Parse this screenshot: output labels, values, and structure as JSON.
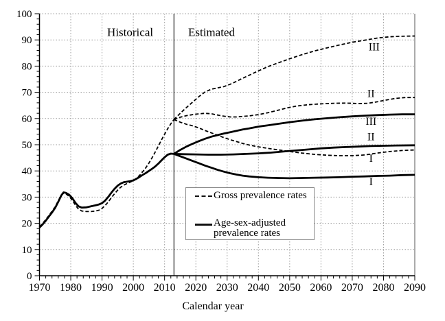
{
  "chart_data": {
    "type": "line",
    "title": "",
    "xlabel": "Calendar year",
    "ylabel": "",
    "xlim": [
      1970,
      2090
    ],
    "ylim": [
      0,
      100
    ],
    "x_major_tick_step": 10,
    "x_minor_tick_step": 2,
    "y_major_tick_step": 10,
    "y_minor_tick_step": 2,
    "grid": "dotted",
    "divider_year": 2013,
    "region_labels": [
      {
        "text": "Historical",
        "x": 1999,
        "y": 93
      },
      {
        "text": "Estimated",
        "x": 2025,
        "y": 93
      }
    ],
    "legend": {
      "items": [
        {
          "label": "Gross prevalence rates",
          "style": "dashed"
        },
        {
          "label": "Age-sex-adjusted prevalence rates",
          "style": "solid"
        }
      ]
    },
    "curve_labels": [
      {
        "text": "III",
        "series": "gross-estimated-III",
        "x": 2077,
        "y": 87.3
      },
      {
        "text": "II",
        "series": "gross-estimated-II",
        "x": 2076,
        "y": 69.5
      },
      {
        "text": "III",
        "series": "adjusted-estimated-III",
        "x": 2076,
        "y": 58.9
      },
      {
        "text": "II",
        "series": "adjusted-estimated-II",
        "x": 2076,
        "y": 53.0
      },
      {
        "text": "I",
        "series": "gross-estimated-I",
        "x": 2076,
        "y": 44.7
      },
      {
        "text": "I",
        "series": "adjusted-estimated-I",
        "x": 2076,
        "y": 35.8
      }
    ],
    "series": [
      {
        "name": "gross-historical",
        "style": "dashed",
        "points": [
          [
            1970,
            18.7
          ],
          [
            1971,
            20.0
          ],
          [
            1972,
            21.4
          ],
          [
            1973,
            23.0
          ],
          [
            1974,
            24.6
          ],
          [
            1975,
            26.3
          ],
          [
            1976,
            28.6
          ],
          [
            1977,
            30.8
          ],
          [
            1977.7,
            31.5
          ],
          [
            1978.5,
            31.2
          ],
          [
            1979.5,
            30.3
          ],
          [
            1980.5,
            28.8
          ],
          [
            1981.5,
            26.9
          ],
          [
            1982.5,
            25.4
          ],
          [
            1983.5,
            24.7
          ],
          [
            1985,
            24.5
          ],
          [
            1986.5,
            24.5
          ],
          [
            1988,
            24.7
          ],
          [
            1989,
            25.0
          ],
          [
            1990,
            25.7
          ],
          [
            1991,
            26.8
          ],
          [
            1992,
            28.2
          ],
          [
            1993,
            29.8
          ],
          [
            1994,
            31.3
          ],
          [
            1995,
            32.7
          ],
          [
            1996,
            33.8
          ],
          [
            1997,
            34.6
          ],
          [
            1998,
            35.2
          ],
          [
            1999,
            35.7
          ],
          [
            2000,
            36.3
          ],
          [
            2001,
            37.2
          ],
          [
            2002,
            38.3
          ],
          [
            2003,
            39.7
          ],
          [
            2004,
            41.2
          ],
          [
            2005,
            43.0
          ],
          [
            2006,
            45.0
          ],
          [
            2007,
            47.2
          ],
          [
            2008,
            49.5
          ],
          [
            2009,
            51.8
          ],
          [
            2010,
            54.0
          ],
          [
            2011,
            56.1
          ],
          [
            2012,
            58.0
          ],
          [
            2013,
            59.6
          ]
        ]
      },
      {
        "name": "adjusted-historical",
        "style": "solid",
        "points": [
          [
            1970,
            18.4
          ],
          [
            1971,
            19.6
          ],
          [
            1972,
            21.0
          ],
          [
            1973,
            22.6
          ],
          [
            1974,
            24.1
          ],
          [
            1975,
            25.9
          ],
          [
            1976,
            28.2
          ],
          [
            1977,
            30.7
          ],
          [
            1977.7,
            31.8
          ],
          [
            1978.5,
            31.6
          ],
          [
            1979.5,
            30.9
          ],
          [
            1980.5,
            29.6
          ],
          [
            1981.5,
            27.8
          ],
          [
            1982.5,
            26.5
          ],
          [
            1983.5,
            26.0
          ],
          [
            1985,
            26.1
          ],
          [
            1986.5,
            26.5
          ],
          [
            1988,
            26.9
          ],
          [
            1989,
            27.2
          ],
          [
            1990,
            27.7
          ],
          [
            1991,
            28.7
          ],
          [
            1992,
            30.1
          ],
          [
            1993,
            31.7
          ],
          [
            1994,
            33.2
          ],
          [
            1995,
            34.4
          ],
          [
            1996,
            35.2
          ],
          [
            1997,
            35.7
          ],
          [
            1998,
            35.9
          ],
          [
            1999,
            36.1
          ],
          [
            2000,
            36.4
          ],
          [
            2001,
            37.0
          ],
          [
            2002,
            37.7
          ],
          [
            2003,
            38.5
          ],
          [
            2004,
            39.2
          ],
          [
            2005,
            40.0
          ],
          [
            2006,
            40.8
          ],
          [
            2007,
            41.7
          ],
          [
            2008,
            42.8
          ],
          [
            2009,
            44.0
          ],
          [
            2010,
            45.2
          ],
          [
            2011,
            46.2
          ],
          [
            2012,
            46.6
          ],
          [
            2013,
            46.5
          ]
        ]
      },
      {
        "name": "gross-estimated-III",
        "style": "dashed",
        "points": [
          [
            2013,
            59.6
          ],
          [
            2015,
            62.0
          ],
          [
            2017,
            64.2
          ],
          [
            2019,
            66.3
          ],
          [
            2021,
            68.4
          ],
          [
            2023,
            70.2
          ],
          [
            2025,
            71.2
          ],
          [
            2027,
            71.7
          ],
          [
            2029,
            72.2
          ],
          [
            2031,
            73.1
          ],
          [
            2033,
            74.2
          ],
          [
            2035,
            75.4
          ],
          [
            2037,
            76.5
          ],
          [
            2040,
            78.2
          ],
          [
            2043,
            79.8
          ],
          [
            2046,
            81.1
          ],
          [
            2050,
            82.8
          ],
          [
            2054,
            84.4
          ],
          [
            2058,
            85.8
          ],
          [
            2062,
            87.0
          ],
          [
            2066,
            88.1
          ],
          [
            2070,
            89.1
          ],
          [
            2074,
            89.9
          ],
          [
            2078,
            90.7
          ],
          [
            2082,
            91.2
          ],
          [
            2085,
            91.4
          ],
          [
            2090,
            91.5
          ]
        ]
      },
      {
        "name": "gross-estimated-II",
        "style": "dashed",
        "points": [
          [
            2013,
            59.6
          ],
          [
            2015,
            60.5
          ],
          [
            2017,
            61.1
          ],
          [
            2019,
            61.5
          ],
          [
            2021,
            61.8
          ],
          [
            2023,
            62.0
          ],
          [
            2025,
            61.8
          ],
          [
            2027,
            61.3
          ],
          [
            2029,
            60.9
          ],
          [
            2031,
            60.6
          ],
          [
            2033,
            60.6
          ],
          [
            2035,
            60.8
          ],
          [
            2037,
            61.0
          ],
          [
            2040,
            61.5
          ],
          [
            2043,
            62.2
          ],
          [
            2046,
            63.1
          ],
          [
            2049,
            64.0
          ],
          [
            2052,
            64.7
          ],
          [
            2056,
            65.3
          ],
          [
            2060,
            65.6
          ],
          [
            2064,
            65.8
          ],
          [
            2068,
            65.9
          ],
          [
            2072,
            65.7
          ],
          [
            2075,
            65.8
          ],
          [
            2078,
            66.4
          ],
          [
            2081,
            67.1
          ],
          [
            2084,
            67.7
          ],
          [
            2087,
            68.0
          ],
          [
            2090,
            68.0
          ]
        ]
      },
      {
        "name": "gross-estimated-I",
        "style": "dashed",
        "points": [
          [
            2013,
            59.6
          ],
          [
            2015,
            58.6
          ],
          [
            2017,
            57.8
          ],
          [
            2019,
            57.2
          ],
          [
            2021,
            56.4
          ],
          [
            2023,
            55.4
          ],
          [
            2025,
            54.5
          ],
          [
            2027,
            53.6
          ],
          [
            2029,
            52.7
          ],
          [
            2031,
            51.9
          ],
          [
            2033,
            51.2
          ],
          [
            2035,
            50.5
          ],
          [
            2037,
            49.9
          ],
          [
            2040,
            49.2
          ],
          [
            2043,
            48.6
          ],
          [
            2046,
            48.1
          ],
          [
            2050,
            47.4
          ],
          [
            2054,
            46.8
          ],
          [
            2058,
            46.3
          ],
          [
            2062,
            46.0
          ],
          [
            2066,
            45.8
          ],
          [
            2070,
            45.8
          ],
          [
            2074,
            46.1
          ],
          [
            2078,
            46.8
          ],
          [
            2082,
            47.4
          ],
          [
            2086,
            47.8
          ],
          [
            2090,
            48.0
          ]
        ]
      },
      {
        "name": "adjusted-estimated-III",
        "style": "solid",
        "points": [
          [
            2013,
            46.5
          ],
          [
            2015,
            48.0
          ],
          [
            2017,
            49.3
          ],
          [
            2019,
            50.4
          ],
          [
            2021,
            51.4
          ],
          [
            2023,
            52.3
          ],
          [
            2025,
            53.1
          ],
          [
            2027,
            53.7
          ],
          [
            2029,
            54.3
          ],
          [
            2031,
            54.8
          ],
          [
            2033,
            55.3
          ],
          [
            2035,
            55.8
          ],
          [
            2037,
            56.2
          ],
          [
            2040,
            56.9
          ],
          [
            2043,
            57.4
          ],
          [
            2046,
            57.9
          ],
          [
            2050,
            58.6
          ],
          [
            2054,
            59.2
          ],
          [
            2058,
            59.7
          ],
          [
            2062,
            60.1
          ],
          [
            2066,
            60.5
          ],
          [
            2070,
            60.8
          ],
          [
            2074,
            61.1
          ],
          [
            2078,
            61.3
          ],
          [
            2082,
            61.5
          ],
          [
            2086,
            61.6
          ],
          [
            2090,
            61.6
          ]
        ]
      },
      {
        "name": "adjusted-estimated-II",
        "style": "solid",
        "points": [
          [
            2013,
            46.5
          ],
          [
            2016,
            46.4
          ],
          [
            2020,
            46.3
          ],
          [
            2024,
            46.2
          ],
          [
            2028,
            46.2
          ],
          [
            2032,
            46.3
          ],
          [
            2036,
            46.5
          ],
          [
            2040,
            46.7
          ],
          [
            2044,
            47.0
          ],
          [
            2048,
            47.4
          ],
          [
            2052,
            47.8
          ],
          [
            2056,
            48.2
          ],
          [
            2060,
            48.6
          ],
          [
            2064,
            48.9
          ],
          [
            2068,
            49.1
          ],
          [
            2072,
            49.3
          ],
          [
            2076,
            49.5
          ],
          [
            2080,
            49.6
          ],
          [
            2084,
            49.7
          ],
          [
            2090,
            49.8
          ]
        ]
      },
      {
        "name": "adjusted-estimated-I",
        "style": "solid",
        "points": [
          [
            2013,
            46.5
          ],
          [
            2015,
            45.6
          ],
          [
            2017,
            44.7
          ],
          [
            2019,
            43.8
          ],
          [
            2021,
            42.9
          ],
          [
            2023,
            42.0
          ],
          [
            2025,
            41.2
          ],
          [
            2027,
            40.4
          ],
          [
            2029,
            39.7
          ],
          [
            2031,
            39.1
          ],
          [
            2033,
            38.6
          ],
          [
            2035,
            38.2
          ],
          [
            2037,
            37.9
          ],
          [
            2040,
            37.6
          ],
          [
            2043,
            37.4
          ],
          [
            2046,
            37.3
          ],
          [
            2050,
            37.2
          ],
          [
            2054,
            37.3
          ],
          [
            2058,
            37.4
          ],
          [
            2062,
            37.5
          ],
          [
            2066,
            37.6
          ],
          [
            2070,
            37.8
          ],
          [
            2074,
            37.9
          ],
          [
            2078,
            38.1
          ],
          [
            2082,
            38.2
          ],
          [
            2086,
            38.4
          ],
          [
            2090,
            38.5
          ]
        ]
      }
    ]
  }
}
